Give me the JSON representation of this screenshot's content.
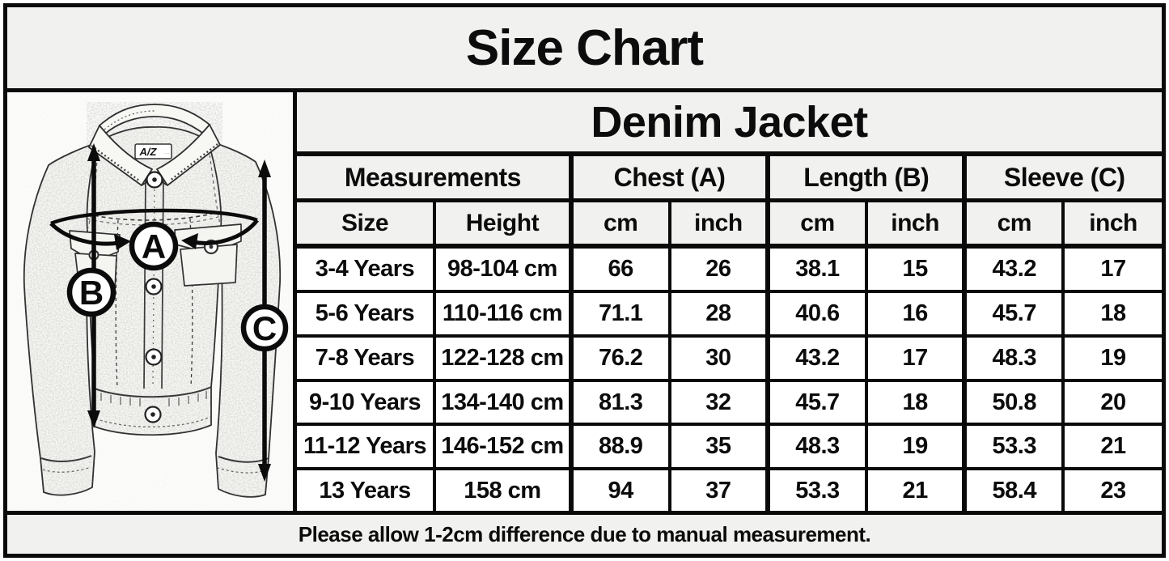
{
  "page": {
    "title": "Size Chart",
    "footer_note": "Please allow 1-2cm difference due to manual measurement."
  },
  "jacket_diagram": {
    "description": "sketch of a denim jacket with measurement arrows",
    "brand_tag": "A/Z",
    "measure_labels": {
      "chest": "A",
      "length": "B",
      "sleeve": "C"
    }
  },
  "size_table": {
    "title": "Denim Jacket",
    "group_headers": [
      "Measurements",
      "Chest (A)",
      "Length (B)",
      "Sleeve (C)"
    ],
    "sub_headers": [
      "Size",
      "Height",
      "cm",
      "inch",
      "cm",
      "inch",
      "cm",
      "inch"
    ],
    "rows": [
      [
        "3-4 Years",
        "98-104 cm",
        "66",
        "26",
        "38.1",
        "15",
        "43.2",
        "17"
      ],
      [
        "5-6 Years",
        "110-116 cm",
        "71.1",
        "28",
        "40.6",
        "16",
        "45.7",
        "18"
      ],
      [
        "7-8 Years",
        "122-128 cm",
        "76.2",
        "30",
        "43.2",
        "17",
        "48.3",
        "19"
      ],
      [
        "9-10 Years",
        "134-140 cm",
        "81.3",
        "32",
        "45.7",
        "18",
        "50.8",
        "20"
      ],
      [
        "11-12 Years",
        "146-152 cm",
        "88.9",
        "35",
        "48.3",
        "19",
        "53.3",
        "21"
      ],
      [
        "13 Years",
        "158 cm",
        "94",
        "37",
        "53.3",
        "21",
        "58.4",
        "23"
      ]
    ]
  },
  "colors": {
    "border": "#0a0a0a",
    "header_bg": "#f1f1ef",
    "cell_bg": "#ffffff",
    "text": "#0c0c0c"
  }
}
